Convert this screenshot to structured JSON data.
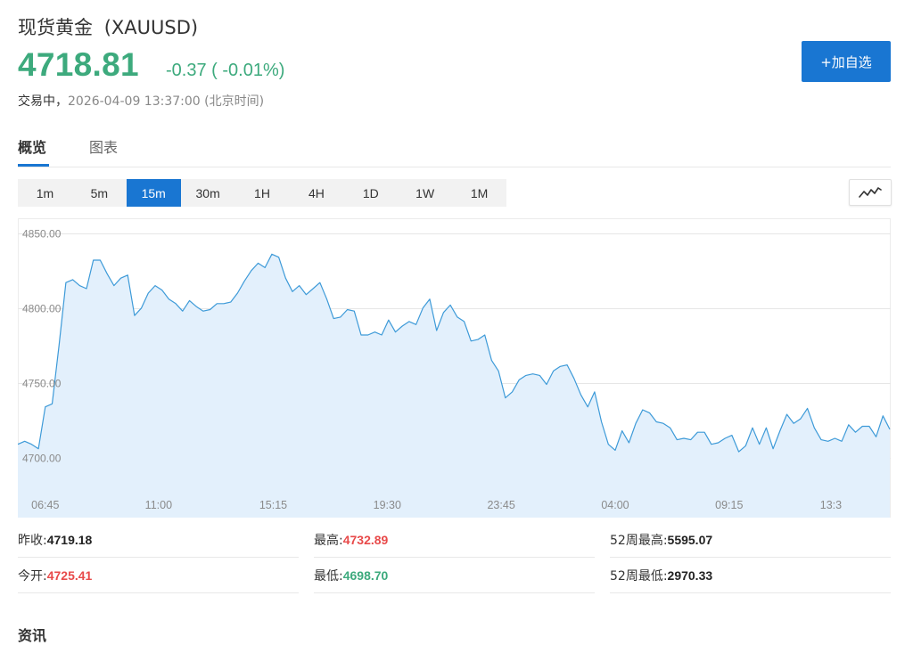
{
  "header": {
    "name": "现货黄金",
    "symbol": "(XAUUSD)",
    "price": "4718.81",
    "change": "-0.37",
    "change_pct": "( -0.01%)",
    "status": "交易中，",
    "timestamp": "2026-04-09 13:37:00",
    "timezone": "(北京时间)",
    "add_button": "+加自选",
    "color_down": "#3daa7d",
    "color_up": "#e84a4a",
    "accent": "#1976d2"
  },
  "tabs": [
    {
      "label": "概览",
      "active": true
    },
    {
      "label": "图表",
      "active": false
    }
  ],
  "periods": [
    {
      "label": "1m",
      "active": false
    },
    {
      "label": "5m",
      "active": false
    },
    {
      "label": "15m",
      "active": true
    },
    {
      "label": "30m",
      "active": false
    },
    {
      "label": "1H",
      "active": false
    },
    {
      "label": "4H",
      "active": false
    },
    {
      "label": "1D",
      "active": false
    },
    {
      "label": "1W",
      "active": false
    },
    {
      "label": "1M",
      "active": false
    }
  ],
  "chart_type_icon": "line-chart-icon",
  "chart_data": {
    "type": "area",
    "ylim": [
      4660,
      4860
    ],
    "y_ticks": [
      "4850.00",
      "4800.00",
      "4750.00",
      "4700.00"
    ],
    "y_tick_values": [
      4850,
      4800,
      4750,
      4700
    ],
    "x_ticks": [
      "06:45",
      "11:00",
      "15:15",
      "19:30",
      "23:45",
      "04:00",
      "09:15",
      "13:3"
    ],
    "x_tick_index": [
      4,
      20.5,
      37.2,
      53.8,
      70.4,
      87,
      103.6,
      120
    ],
    "line_color": "#3d9ad8",
    "fill_color": "#e3f0fc",
    "grid": true,
    "series": [
      {
        "values": [
          4709,
          4711,
          4709,
          4706,
          4734,
          4736,
          4775,
          4817,
          4819,
          4815,
          4813,
          4832,
          4832,
          4823,
          4815,
          4820,
          4822,
          4795,
          4800,
          4810,
          4815,
          4812,
          4806,
          4803,
          4798,
          4805,
          4801,
          4798,
          4799,
          4803,
          4803,
          4804,
          4810,
          4818,
          4825,
          4830,
          4827,
          4836,
          4834,
          4820,
          4811,
          4815,
          4809,
          4813,
          4817,
          4806,
          4793,
          4794,
          4799,
          4798,
          4782,
          4782,
          4784,
          4782,
          4792,
          4784,
          4788,
          4791,
          4789,
          4800,
          4806,
          4785,
          4797,
          4802,
          4794,
          4791,
          4778,
          4779,
          4782,
          4765,
          4758,
          4740,
          4744,
          4752,
          4755,
          4756,
          4755,
          4749,
          4758,
          4761,
          4762,
          4753,
          4742,
          4734,
          4744,
          4724,
          4709,
          4705,
          4718,
          4710,
          4723,
          4732,
          4730,
          4724,
          4723,
          4720,
          4712,
          4713,
          4712,
          4717,
          4717,
          4709,
          4710,
          4713,
          4715,
          4704,
          4708,
          4720,
          4709,
          4720,
          4706,
          4718,
          4729,
          4723,
          4726,
          4733,
          4720,
          4712,
          4711,
          4713,
          4711,
          4722,
          4717,
          4721,
          4721,
          4714,
          4728,
          4719
        ]
      }
    ]
  },
  "stats": [
    [
      {
        "label": "昨收:",
        "value": "4719.18",
        "tone": "dark"
      },
      {
        "label": "最高:",
        "value": "4732.89",
        "tone": "red"
      },
      {
        "label": "52周最高:",
        "value": "5595.07",
        "tone": "dark"
      }
    ],
    [
      {
        "label": "今开:",
        "value": "4725.41",
        "tone": "red"
      },
      {
        "label": "最低:",
        "value": "4698.70",
        "tone": "green"
      },
      {
        "label": "52周最低:",
        "value": "2970.33",
        "tone": "dark"
      }
    ]
  ],
  "bottom_heading": "资讯"
}
